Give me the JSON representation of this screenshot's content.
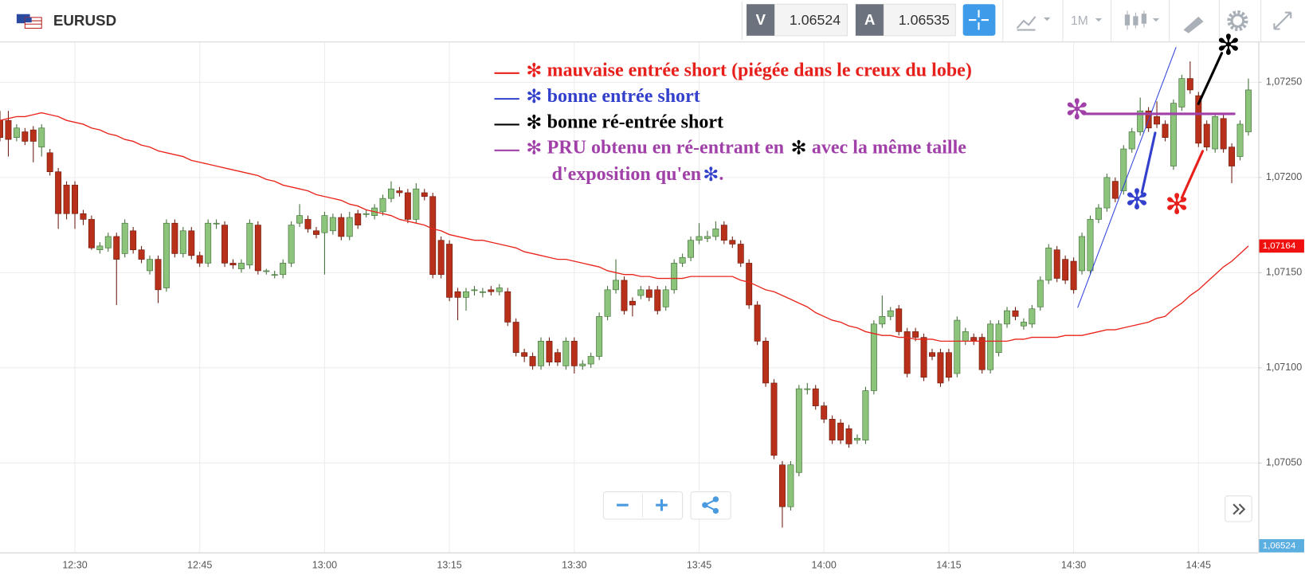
{
  "header": {
    "symbol": "EURUSD",
    "bid_label": "V",
    "bid": 1.06524,
    "ask_label": "A",
    "ask": 1.06535,
    "timeframe": "1M"
  },
  "chart_data": {
    "type": "candlestick",
    "up_color": "#8cc47c",
    "down_color": "#b8301a",
    "categories": [
      null,
      null,
      null,
      null,
      null,
      null,
      null,
      null,
      null,
      "12:30",
      null,
      null,
      null,
      null,
      null,
      null,
      null,
      null,
      null,
      null,
      null,
      null,
      null,
      null,
      "12:45",
      null,
      null,
      null,
      null,
      null,
      null,
      null,
      null,
      null,
      null,
      null,
      null,
      null,
      null,
      "13:00",
      null,
      null,
      null,
      null,
      null,
      null,
      null,
      null,
      null,
      null,
      null,
      null,
      null,
      null,
      "13:15",
      null,
      null,
      null,
      null,
      null,
      null,
      null,
      null,
      null,
      null,
      null,
      null,
      null,
      null,
      "13:30",
      null,
      null,
      null,
      null,
      null,
      null,
      null,
      null,
      null,
      null,
      null,
      null,
      null,
      null,
      "13:45",
      null,
      null,
      null,
      null,
      null,
      null,
      null,
      null,
      null,
      null,
      null,
      null,
      null,
      null,
      "14:00",
      null,
      null,
      null,
      null,
      null,
      null,
      null,
      null,
      null,
      null,
      null,
      null,
      null,
      null,
      "14:15",
      null,
      null,
      null,
      null,
      null,
      null,
      null,
      null,
      null,
      null,
      null,
      null,
      null,
      null,
      "14:30",
      null,
      null,
      null,
      null,
      null,
      null,
      null,
      null,
      null,
      null,
      null,
      null,
      null,
      null,
      "14:45",
      null,
      null,
      null,
      null,
      null,
      null
    ],
    "open": [
      1.0723,
      1.0723,
      1.07221,
      1.07224,
      1.07225,
      1.07216,
      1.07213,
      1.07203,
      1.07196,
      1.07196,
      1.07181,
      1.07178,
      1.07162,
      1.07163,
      1.07169,
      1.0716,
      1.07172,
      1.07162,
      1.07151,
      1.07157,
      1.07142,
      1.07176,
      1.0716,
      1.07172,
      1.07159,
      1.07155,
      1.07176,
      1.07175,
      1.07155,
      1.07152,
      1.07154,
      1.07175,
      1.07151,
      1.07149,
      1.07149,
      1.07155,
      1.07176,
      1.07178,
      1.07172,
      1.07171,
      1.07172,
      1.07179,
      1.07169,
      1.07181,
      1.07181,
      1.0718,
      1.07182,
      1.07189,
      1.07193,
      1.07192,
      1.07178,
      1.07192,
      1.0719,
      1.07167,
      1.07165,
      1.0714,
      1.07137,
      1.07141,
      1.0714,
      1.07141,
      1.0714,
      1.0714,
      1.07124,
      1.07108,
      1.07106,
      1.07101,
      1.07114,
      1.07108,
      1.07101,
      1.07114,
      1.07101,
      1.07102,
      1.07106,
      1.07127,
      1.07141,
      1.07146,
      1.07135,
      1.07138,
      1.07141,
      1.07141,
      1.07132,
      1.07141,
      1.07155,
      1.07158,
      1.07167,
      1.07168,
      1.07169,
      1.07175,
      1.07167,
      1.07165,
      1.07155,
      1.07133,
      1.07114,
      1.07092,
      1.07049,
      1.07027,
      1.07045,
      1.07089,
      1.07089,
      1.0708,
      1.07073,
      1.07071,
      1.07068,
      1.07062,
      1.07062,
      1.07088,
      1.07123,
      1.07127,
      1.07131,
      1.07119,
      1.07119,
      1.07116,
      1.07108,
      1.07108,
      1.07108,
      1.07097,
      1.07114,
      1.07116,
      1.07116,
      1.07099,
      1.07108,
      1.07123,
      1.0713,
      1.07122,
      1.07123,
      1.07132,
      1.07146,
      1.07162,
      1.07157,
      1.07156,
      1.07151,
      1.07151,
      1.07178,
      1.07184,
      1.07198,
      1.07193,
      1.07215,
      1.07224,
      1.07235,
      1.07232,
      1.07228,
      1.07206,
      1.07237,
      1.07252,
      1.07243,
      1.07228,
      1.07215,
      1.07231,
      1.07216,
      1.07211,
      1.07224
    ],
    "high": [
      1.07235,
      1.07235,
      1.07228,
      1.07226,
      1.07227,
      1.07228,
      1.07215,
      1.07205,
      1.07198,
      1.07198,
      1.07183,
      1.0718,
      1.07166,
      1.07171,
      1.07171,
      1.07178,
      1.07174,
      1.07164,
      1.07159,
      1.07159,
      1.07178,
      1.07178,
      1.07174,
      1.07174,
      1.07161,
      1.07178,
      1.07178,
      1.07177,
      1.07157,
      1.07157,
      1.07178,
      1.07177,
      1.07152,
      1.07151,
      1.07157,
      1.07177,
      1.07186,
      1.0718,
      1.07174,
      1.07182,
      1.07181,
      1.07181,
      1.07182,
      1.07183,
      1.07183,
      1.07186,
      1.07191,
      1.07198,
      1.07195,
      1.07194,
      1.07197,
      1.07194,
      1.07192,
      1.07169,
      1.07167,
      1.07142,
      1.07142,
      1.07143,
      1.07142,
      1.07143,
      1.07144,
      1.07142,
      1.07126,
      1.0711,
      1.07108,
      1.07116,
      1.07116,
      1.0711,
      1.07116,
      1.07116,
      1.07104,
      1.07108,
      1.07129,
      1.07143,
      1.07157,
      1.07148,
      1.07137,
      1.07143,
      1.07143,
      1.07143,
      1.07143,
      1.07157,
      1.0716,
      1.07169,
      1.07176,
      1.07172,
      1.07177,
      1.07177,
      1.07169,
      1.07167,
      1.07157,
      1.07135,
      1.07116,
      1.07094,
      1.07051,
      1.07051,
      1.07091,
      1.07092,
      1.07091,
      1.07082,
      1.07075,
      1.07073,
      1.0707,
      1.07065,
      1.0709,
      1.07125,
      1.07138,
      1.07132,
      1.07133,
      1.07121,
      1.07121,
      1.07118,
      1.0711,
      1.0711,
      1.0711,
      1.07127,
      1.07121,
      1.07118,
      1.07118,
      1.07125,
      1.07125,
      1.07132,
      1.07132,
      1.07126,
      1.07133,
      1.07148,
      1.07165,
      1.07164,
      1.07159,
      1.07158,
      1.07171,
      1.0718,
      1.07186,
      1.07202,
      1.072,
      1.07217,
      1.07226,
      1.07242,
      1.07237,
      1.0724,
      1.0723,
      1.07241,
      1.07254,
      1.07261,
      1.07245,
      1.0723,
      1.07234,
      1.07233,
      1.07218,
      1.0723,
      1.07252
    ],
    "low": [
      1.07219,
      1.07211,
      1.07219,
      1.07217,
      1.07208,
      1.07211,
      1.07201,
      1.07173,
      1.07178,
      1.07173,
      1.07175,
      1.07162,
      1.0716,
      1.07161,
      1.07133,
      1.07158,
      1.0716,
      1.07155,
      1.07149,
      1.07134,
      1.0714,
      1.07158,
      1.07158,
      1.07157,
      1.07153,
      1.07153,
      1.07173,
      1.07153,
      1.07152,
      1.0715,
      1.07152,
      1.07149,
      1.07149,
      1.07147,
      1.07147,
      1.07153,
      1.07174,
      1.07171,
      1.07168,
      1.07149,
      1.0717,
      1.07167,
      1.07167,
      1.07173,
      1.07179,
      1.07178,
      1.0718,
      1.07187,
      1.0719,
      1.07176,
      1.07176,
      1.07188,
      1.07147,
      1.07147,
      1.07135,
      1.07125,
      1.0713,
      1.07138,
      1.07137,
      1.07138,
      1.07138,
      1.07122,
      1.07106,
      1.07103,
      1.07099,
      1.07099,
      1.07101,
      1.07101,
      1.07099,
      1.07097,
      1.07099,
      1.071,
      1.07104,
      1.07125,
      1.07139,
      1.07128,
      1.07127,
      1.07136,
      1.07135,
      1.07128,
      1.0713,
      1.07139,
      1.07153,
      1.07156,
      1.07165,
      1.07166,
      1.07167,
      1.07165,
      1.07163,
      1.07153,
      1.07131,
      1.07112,
      1.0709,
      1.07052,
      1.07016,
      1.07025,
      1.07043,
      1.07086,
      1.07078,
      1.07071,
      1.0706,
      1.0706,
      1.07058,
      1.0706,
      1.0706,
      1.07086,
      1.07121,
      1.07125,
      1.07117,
      1.07095,
      1.07114,
      1.07093,
      1.07104,
      1.0709,
      1.07093,
      1.07095,
      1.07112,
      1.07112,
      1.07097,
      1.07097,
      1.07106,
      1.07121,
      1.07125,
      1.0712,
      1.07121,
      1.0713,
      1.07144,
      1.07145,
      1.07144,
      1.07139,
      1.07149,
      1.07149,
      1.07176,
      1.07182,
      1.07187,
      1.07191,
      1.07213,
      1.07222,
      1.07224,
      1.07226,
      1.07219,
      1.07204,
      1.07235,
      1.07244,
      1.07216,
      1.07214,
      1.07213,
      1.07213,
      1.07197,
      1.07209,
      1.07222
    ],
    "close": [
      1.07221,
      1.0722,
      1.07226,
      1.07219,
      1.07219,
      1.07226,
      1.07203,
      1.07181,
      1.07181,
      1.07181,
      1.07178,
      1.07163,
      1.07164,
      1.07169,
      1.07157,
      1.07176,
      1.07162,
      1.07157,
      1.07157,
      1.07141,
      1.07176,
      1.0716,
      1.07172,
      1.07159,
      1.07155,
      1.07176,
      1.07176,
      1.07155,
      1.07154,
      1.07155,
      1.07176,
      1.07151,
      1.07151,
      1.07149,
      1.07155,
      1.07175,
      1.0718,
      1.07173,
      1.0717,
      1.0718,
      1.07179,
      1.07169,
      1.07179,
      1.07175,
      1.07181,
      1.07184,
      1.07189,
      1.07194,
      1.07192,
      1.07178,
      1.07194,
      1.0719,
      1.07149,
      1.07149,
      1.07137,
      1.07137,
      1.0714,
      1.07141,
      1.0714,
      1.0714,
      1.07142,
      1.07124,
      1.07108,
      1.07106,
      1.07101,
      1.07114,
      1.07103,
      1.07103,
      1.07114,
      1.07101,
      1.07102,
      1.07106,
      1.07127,
      1.07141,
      1.07146,
      1.0713,
      1.07133,
      1.07141,
      1.07137,
      1.0713,
      1.07141,
      1.07155,
      1.07158,
      1.07167,
      1.07169,
      1.07169,
      1.07173,
      1.07167,
      1.07165,
      1.07155,
      1.07133,
      1.07114,
      1.07092,
      1.07054,
      1.07027,
      1.07049,
      1.07089,
      1.07089,
      1.0708,
      1.07073,
      1.07062,
      1.07062,
      1.0706,
      1.07063,
      1.07088,
      1.07123,
      1.07127,
      1.0713,
      1.07119,
      1.07097,
      1.07116,
      1.07095,
      1.07106,
      1.07092,
      1.07095,
      1.07125,
      1.07119,
      1.07114,
      1.07099,
      1.07123,
      1.07123,
      1.0713,
      1.07127,
      1.07124,
      1.07131,
      1.07146,
      1.07163,
      1.07147,
      1.07146,
      1.07141,
      1.07169,
      1.07178,
      1.07184,
      1.072,
      1.07189,
      1.07215,
      1.07224,
      1.07235,
      1.07226,
      1.07228,
      1.07221,
      1.07239,
      1.07252,
      1.07246,
      1.07218,
      1.07216,
      1.07232,
      1.07215,
      1.07206,
      1.07228,
      1.07246
    ],
    "ma": {
      "color": "#e8251c",
      "values": [
        1.0723,
        1.07231,
        1.07232,
        1.07232,
        1.07233,
        1.07234,
        1.07233,
        1.07232,
        1.0723,
        1.07229,
        1.07228,
        1.07226,
        1.07225,
        1.07223,
        1.07222,
        1.0722,
        1.07219,
        1.07217,
        1.07216,
        1.07214,
        1.07213,
        1.07212,
        1.07211,
        1.07209,
        1.07208,
        1.07207,
        1.07206,
        1.07205,
        1.07204,
        1.07203,
        1.07202,
        1.07201,
        1.07199,
        1.07198,
        1.07196,
        1.07195,
        1.07194,
        1.07193,
        1.07191,
        1.0719,
        1.07189,
        1.07188,
        1.07186,
        1.07185,
        1.07183,
        1.07182,
        1.07181,
        1.0718,
        1.07178,
        1.07177,
        1.07176,
        1.07175,
        1.07173,
        1.07172,
        1.0717,
        1.07169,
        1.07168,
        1.07167,
        1.07167,
        1.07166,
        1.07165,
        1.07164,
        1.07163,
        1.07161,
        1.0716,
        1.07159,
        1.07158,
        1.07157,
        1.07157,
        1.07156,
        1.07155,
        1.07154,
        1.07153,
        1.07151,
        1.0715,
        1.07149,
        1.07149,
        1.07148,
        1.07148,
        1.07147,
        1.07147,
        1.07147,
        1.07147,
        1.07148,
        1.07148,
        1.07148,
        1.07148,
        1.07148,
        1.07148,
        1.07146,
        1.07145,
        1.07143,
        1.07141,
        1.0714,
        1.07138,
        1.07136,
        1.07134,
        1.07132,
        1.07129,
        1.07127,
        1.07125,
        1.07124,
        1.07122,
        1.07121,
        1.07119,
        1.07118,
        1.07117,
        1.07117,
        1.07116,
        1.07116,
        1.07115,
        1.07115,
        1.07115,
        1.07114,
        1.07114,
        1.07114,
        1.07114,
        1.07114,
        1.07114,
        1.07114,
        1.07114,
        1.07114,
        1.07115,
        1.07115,
        1.07116,
        1.07116,
        1.07116,
        1.07116,
        1.07117,
        1.07117,
        1.07117,
        1.07118,
        1.07119,
        1.0712,
        1.0712,
        1.07121,
        1.07122,
        1.07123,
        1.07124,
        1.07126,
        1.07127,
        1.07131,
        1.07134,
        1.07138,
        1.07141,
        1.07145,
        1.07149,
        1.07153,
        1.07156,
        1.0716,
        1.07164
      ]
    },
    "ylim": [
      1.07003,
      1.07271
    ],
    "yticks": [
      {
        "value": 1.0705,
        "label": "1,07050"
      },
      {
        "value": 1.071,
        "label": "1,07100"
      },
      {
        "value": 1.0715,
        "label": "1,07150"
      },
      {
        "value": 1.072,
        "label": "1,07200"
      },
      {
        "value": 1.0725,
        "label": "1,07250"
      }
    ],
    "grid": true,
    "price_tags": [
      {
        "value": 1.07164,
        "label": "1,07164",
        "color": "#f01010"
      },
      {
        "value": 1.06524,
        "label": "1,06524",
        "color": "#5aaee0"
      }
    ],
    "annotations": {
      "marker": "✻",
      "bad_entry": "mauvaise entrée short (piégée dans le creux du lobe)",
      "good_entry": "bonne entrée short",
      "reentry": "bonne ré-entrée short",
      "pru": [
        "PRU obtenu en ré-entrant en",
        "avec la même taille",
        "d'exposition qu'en",
        "."
      ]
    }
  }
}
